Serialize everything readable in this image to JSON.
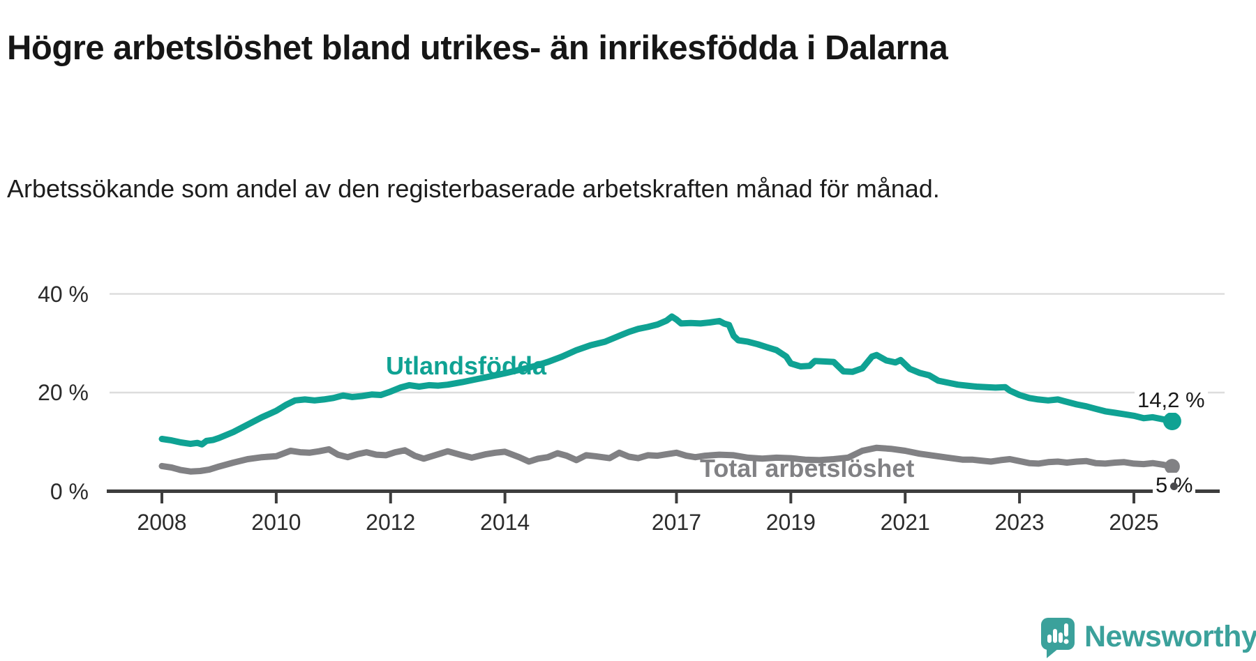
{
  "header": {
    "title": "Högre arbetslöshet bland utrikes- än inrikesfödda i Dalarna",
    "subtitle": "Arbetssökande som andel av den registerbaserade arbetskraften månad för månad."
  },
  "chart_data": {
    "type": "line",
    "title": "Högre arbetslöshet bland utrikes- än inrikesfödda i Dalarna",
    "xlabel": "",
    "ylabel": "",
    "grid": "horizontal-only",
    "legend_position": "inline-labels-on-lines",
    "x_axis": {
      "tick_years": [
        2008,
        2010,
        2012,
        2014,
        2017,
        2019,
        2021,
        2023,
        2025
      ],
      "tick_labels": [
        "2008",
        "2010",
        "2012",
        "2014",
        "2017",
        "2019",
        "2021",
        "2023",
        "2025"
      ],
      "range_years": [
        2008.0,
        2025.67
      ]
    },
    "y_axis": {
      "tick_values": [
        0,
        20,
        40
      ],
      "tick_labels": [
        "0 %",
        "20 %",
        "40 %"
      ],
      "range": [
        0,
        42
      ]
    },
    "series": [
      {
        "name": "Utlandsfödda",
        "color": "#0fa293",
        "end_label": "14,2 %",
        "last_value": 14.2,
        "points": [
          [
            2008.0,
            10.6
          ],
          [
            2008.17,
            10.3
          ],
          [
            2008.33,
            9.9
          ],
          [
            2008.5,
            9.6
          ],
          [
            2008.62,
            9.8
          ],
          [
            2008.7,
            9.5
          ],
          [
            2008.78,
            10.2
          ],
          [
            2008.9,
            10.4
          ],
          [
            2009.0,
            10.8
          ],
          [
            2009.25,
            12.0
          ],
          [
            2009.5,
            13.5
          ],
          [
            2009.75,
            15.0
          ],
          [
            2010.0,
            16.3
          ],
          [
            2010.17,
            17.5
          ],
          [
            2010.33,
            18.4
          ],
          [
            2010.5,
            18.6
          ],
          [
            2010.67,
            18.4
          ],
          [
            2010.83,
            18.6
          ],
          [
            2011.0,
            18.9
          ],
          [
            2011.17,
            19.4
          ],
          [
            2011.33,
            19.1
          ],
          [
            2011.5,
            19.3
          ],
          [
            2011.67,
            19.6
          ],
          [
            2011.83,
            19.5
          ],
          [
            2012.0,
            20.2
          ],
          [
            2012.17,
            21.0
          ],
          [
            2012.33,
            21.5
          ],
          [
            2012.5,
            21.2
          ],
          [
            2012.67,
            21.5
          ],
          [
            2012.83,
            21.4
          ],
          [
            2013.0,
            21.6
          ],
          [
            2013.25,
            22.1
          ],
          [
            2013.5,
            22.7
          ],
          [
            2013.75,
            23.3
          ],
          [
            2014.0,
            23.9
          ],
          [
            2014.25,
            24.6
          ],
          [
            2014.5,
            25.3
          ],
          [
            2014.75,
            26.2
          ],
          [
            2015.0,
            27.3
          ],
          [
            2015.25,
            28.6
          ],
          [
            2015.5,
            29.6
          ],
          [
            2015.75,
            30.3
          ],
          [
            2016.0,
            31.5
          ],
          [
            2016.17,
            32.3
          ],
          [
            2016.33,
            32.9
          ],
          [
            2016.5,
            33.3
          ],
          [
            2016.67,
            33.8
          ],
          [
            2016.83,
            34.6
          ],
          [
            2016.92,
            35.4
          ],
          [
            2017.0,
            34.8
          ],
          [
            2017.08,
            34.0
          ],
          [
            2017.25,
            34.1
          ],
          [
            2017.42,
            34.0
          ],
          [
            2017.58,
            34.2
          ],
          [
            2017.75,
            34.5
          ],
          [
            2017.83,
            34.0
          ],
          [
            2017.92,
            33.7
          ],
          [
            2018.0,
            31.5
          ],
          [
            2018.08,
            30.6
          ],
          [
            2018.25,
            30.3
          ],
          [
            2018.42,
            29.8
          ],
          [
            2018.58,
            29.2
          ],
          [
            2018.75,
            28.6
          ],
          [
            2018.92,
            27.3
          ],
          [
            2019.0,
            25.9
          ],
          [
            2019.17,
            25.3
          ],
          [
            2019.33,
            25.4
          ],
          [
            2019.42,
            26.4
          ],
          [
            2019.58,
            26.3
          ],
          [
            2019.75,
            26.2
          ],
          [
            2019.92,
            24.3
          ],
          [
            2020.08,
            24.2
          ],
          [
            2020.25,
            24.9
          ],
          [
            2020.42,
            27.3
          ],
          [
            2020.5,
            27.6
          ],
          [
            2020.67,
            26.5
          ],
          [
            2020.83,
            26.1
          ],
          [
            2020.92,
            26.6
          ],
          [
            2021.08,
            24.8
          ],
          [
            2021.25,
            24.0
          ],
          [
            2021.42,
            23.5
          ],
          [
            2021.58,
            22.4
          ],
          [
            2021.75,
            22.0
          ],
          [
            2021.92,
            21.6
          ],
          [
            2022.08,
            21.4
          ],
          [
            2022.25,
            21.2
          ],
          [
            2022.42,
            21.1
          ],
          [
            2022.58,
            21.0
          ],
          [
            2022.75,
            21.1
          ],
          [
            2022.83,
            20.4
          ],
          [
            2023.0,
            19.5
          ],
          [
            2023.17,
            18.9
          ],
          [
            2023.33,
            18.6
          ],
          [
            2023.5,
            18.4
          ],
          [
            2023.67,
            18.6
          ],
          [
            2023.83,
            18.1
          ],
          [
            2024.0,
            17.6
          ],
          [
            2024.17,
            17.2
          ],
          [
            2024.33,
            16.7
          ],
          [
            2024.5,
            16.2
          ],
          [
            2024.67,
            15.9
          ],
          [
            2024.83,
            15.6
          ],
          [
            2025.0,
            15.3
          ],
          [
            2025.17,
            14.8
          ],
          [
            2025.33,
            15.0
          ],
          [
            2025.5,
            14.6
          ],
          [
            2025.67,
            14.2
          ]
        ]
      },
      {
        "name": "Total arbetslöshet",
        "color": "#818184",
        "end_label": "5 %",
        "last_value": 5.0,
        "points": [
          [
            2008.0,
            5.1
          ],
          [
            2008.17,
            4.8
          ],
          [
            2008.33,
            4.3
          ],
          [
            2008.5,
            4.0
          ],
          [
            2008.67,
            4.1
          ],
          [
            2008.83,
            4.4
          ],
          [
            2009.0,
            5.0
          ],
          [
            2009.25,
            5.8
          ],
          [
            2009.5,
            6.5
          ],
          [
            2009.75,
            6.9
          ],
          [
            2010.0,
            7.1
          ],
          [
            2010.25,
            8.2
          ],
          [
            2010.42,
            7.9
          ],
          [
            2010.58,
            7.8
          ],
          [
            2010.75,
            8.1
          ],
          [
            2010.92,
            8.5
          ],
          [
            2011.08,
            7.4
          ],
          [
            2011.25,
            6.9
          ],
          [
            2011.42,
            7.5
          ],
          [
            2011.58,
            7.9
          ],
          [
            2011.75,
            7.4
          ],
          [
            2011.92,
            7.3
          ],
          [
            2012.08,
            7.9
          ],
          [
            2012.25,
            8.3
          ],
          [
            2012.42,
            7.2
          ],
          [
            2012.58,
            6.6
          ],
          [
            2012.75,
            7.2
          ],
          [
            2013.0,
            8.1
          ],
          [
            2013.25,
            7.3
          ],
          [
            2013.42,
            6.8
          ],
          [
            2013.67,
            7.5
          ],
          [
            2013.83,
            7.8
          ],
          [
            2014.0,
            8.0
          ],
          [
            2014.25,
            6.9
          ],
          [
            2014.42,
            6.0
          ],
          [
            2014.58,
            6.6
          ],
          [
            2014.75,
            6.9
          ],
          [
            2014.92,
            7.7
          ],
          [
            2015.08,
            7.2
          ],
          [
            2015.25,
            6.3
          ],
          [
            2015.42,
            7.3
          ],
          [
            2015.58,
            7.1
          ],
          [
            2015.83,
            6.7
          ],
          [
            2016.0,
            7.8
          ],
          [
            2016.17,
            7.0
          ],
          [
            2016.33,
            6.7
          ],
          [
            2016.5,
            7.3
          ],
          [
            2016.67,
            7.2
          ],
          [
            2016.83,
            7.5
          ],
          [
            2017.0,
            7.8
          ],
          [
            2017.17,
            7.2
          ],
          [
            2017.33,
            6.9
          ],
          [
            2017.5,
            7.2
          ],
          [
            2017.75,
            7.4
          ],
          [
            2018.0,
            7.3
          ],
          [
            2018.25,
            6.8
          ],
          [
            2018.5,
            6.6
          ],
          [
            2018.75,
            6.8
          ],
          [
            2019.0,
            6.7
          ],
          [
            2019.25,
            6.4
          ],
          [
            2019.5,
            6.3
          ],
          [
            2019.75,
            6.5
          ],
          [
            2020.0,
            6.8
          ],
          [
            2020.25,
            8.2
          ],
          [
            2020.5,
            8.8
          ],
          [
            2020.75,
            8.6
          ],
          [
            2021.0,
            8.2
          ],
          [
            2021.25,
            7.6
          ],
          [
            2021.5,
            7.2
          ],
          [
            2021.75,
            6.8
          ],
          [
            2022.0,
            6.4
          ],
          [
            2022.17,
            6.4
          ],
          [
            2022.33,
            6.2
          ],
          [
            2022.5,
            6.0
          ],
          [
            2022.67,
            6.3
          ],
          [
            2022.83,
            6.5
          ],
          [
            2023.0,
            6.1
          ],
          [
            2023.17,
            5.7
          ],
          [
            2023.33,
            5.6
          ],
          [
            2023.5,
            5.9
          ],
          [
            2023.67,
            6.0
          ],
          [
            2023.83,
            5.8
          ],
          [
            2024.0,
            6.0
          ],
          [
            2024.17,
            6.1
          ],
          [
            2024.33,
            5.7
          ],
          [
            2024.5,
            5.6
          ],
          [
            2024.67,
            5.8
          ],
          [
            2024.83,
            5.9
          ],
          [
            2025.0,
            5.6
          ],
          [
            2025.17,
            5.5
          ],
          [
            2025.33,
            5.7
          ],
          [
            2025.5,
            5.4
          ],
          [
            2025.67,
            5.0
          ]
        ]
      }
    ],
    "colors": {
      "accent_teal": "#0fa293",
      "line_gray": "#818184",
      "gridline": "#dddddd",
      "axis": "#3d3d3d",
      "text": "#1a1a1a"
    }
  },
  "footer": {
    "brand": "Newsworthy",
    "logo_color": "#3ba19b"
  }
}
